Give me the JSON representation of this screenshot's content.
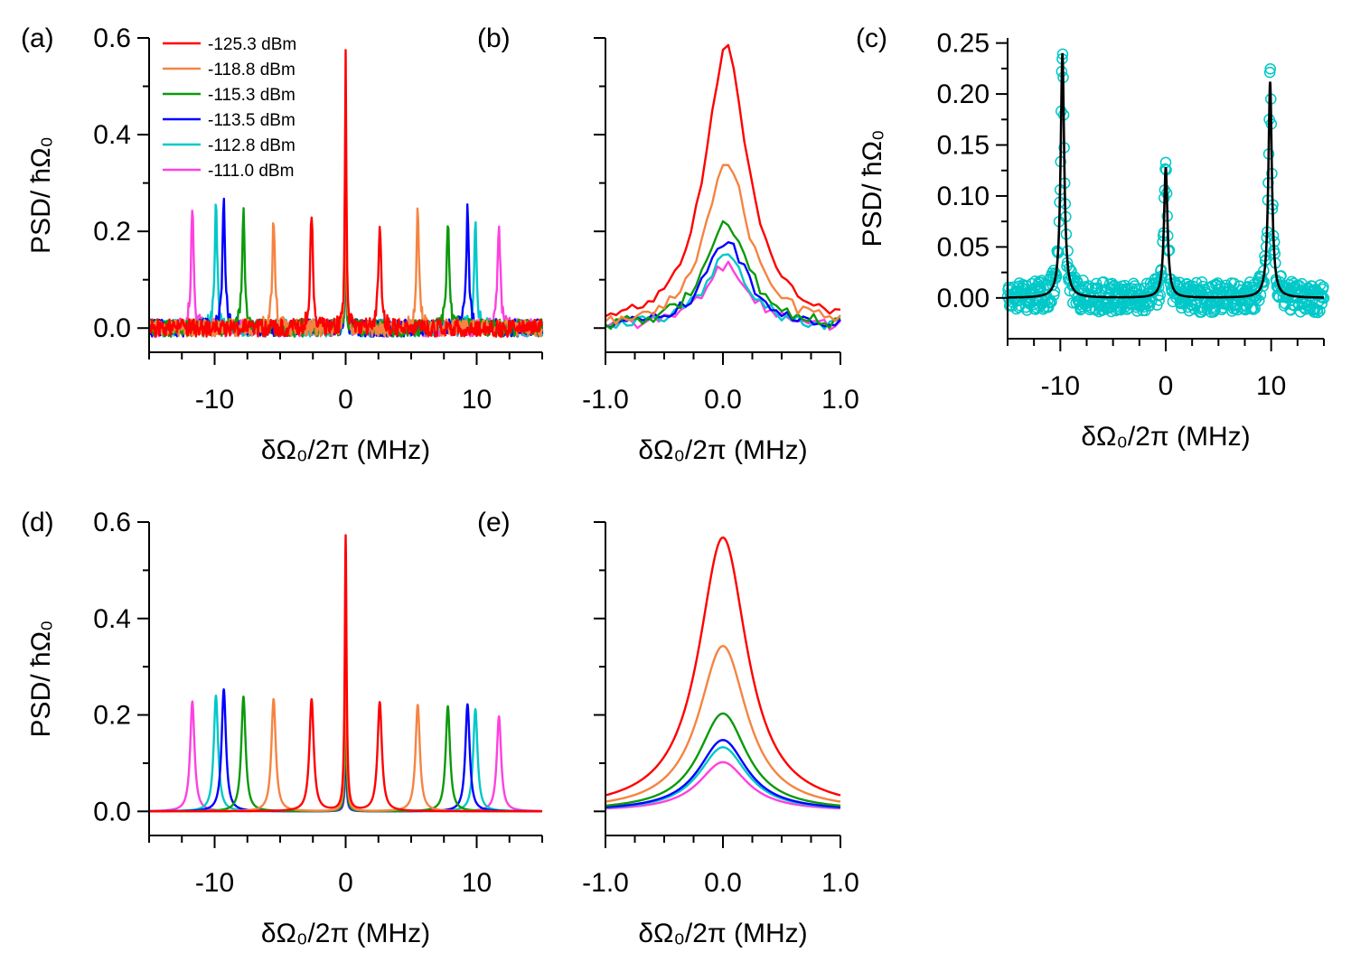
{
  "colors": {
    "red": "#ff0000",
    "orange": "#f58442",
    "green": "#0b9a0b",
    "blue": "#0000ff",
    "cyan": "#00c8c8",
    "magenta": "#ff40e0",
    "black": "#000000"
  },
  "legend": [
    {
      "label": "-125.3 dBm",
      "color": "red"
    },
    {
      "label": "-118.8 dBm",
      "color": "orange"
    },
    {
      "label": "-115.3 dBm",
      "color": "green"
    },
    {
      "label": "-113.5 dBm",
      "color": "blue"
    },
    {
      "label": "-112.8 dBm",
      "color": "cyan"
    },
    {
      "label": "-111.0 dBm",
      "color": "magenta"
    }
  ],
  "axis_titles": {
    "x": "δΩ₀/2π (MHz)",
    "y": "PSD/ ħΩ₀"
  },
  "chart_data": [
    {
      "id": "a",
      "panel_label": "(a)",
      "type": "line",
      "style": "noisy",
      "xlim": [
        -15,
        15
      ],
      "ylim": [
        -0.05,
        0.6
      ],
      "xticks": [
        -10,
        0,
        10
      ],
      "xtick_labels": [
        "-10",
        "0",
        "10"
      ],
      "yticks": [
        0.0,
        0.2,
        0.4,
        0.6
      ],
      "ytick_labels": [
        "0.0",
        "0.2",
        "0.4",
        "0.6"
      ],
      "xlabel": "δΩ₀/2π (MHz)",
      "ylabel": "PSD/ ħΩ₀",
      "noise_amplitude": 0.018,
      "series": [
        {
          "name": "-111.0 dBm",
          "color": "magenta",
          "center_peak": 0.13,
          "sideband_offset": 11.7,
          "sideband_peaks": [
            0.245,
            0.22
          ]
        },
        {
          "name": "-112.8 dBm",
          "color": "cyan",
          "center_peak": 0.14,
          "sideband_offset": 9.9,
          "sideband_peaks": [
            0.25,
            0.22
          ]
        },
        {
          "name": "-113.5 dBm",
          "color": "blue",
          "center_peak": 0.17,
          "sideband_offset": 9.3,
          "sideband_peaks": [
            0.26,
            0.245
          ]
        },
        {
          "name": "-115.3 dBm",
          "color": "green",
          "center_peak": 0.22,
          "sideband_offset": 7.8,
          "sideband_peaks": [
            0.235,
            0.23
          ]
        },
        {
          "name": "-118.8 dBm",
          "color": "orange",
          "center_peak": 0.35,
          "sideband_offset": 5.5,
          "sideband_peaks": [
            0.225,
            0.24
          ]
        },
        {
          "name": "-125.3 dBm",
          "color": "red",
          "center_peak": 0.58,
          "sideband_offset": 2.6,
          "sideband_peaks": [
            0.235,
            0.215
          ]
        }
      ]
    },
    {
      "id": "b",
      "panel_label": "(b)",
      "type": "line",
      "style": "noisy",
      "xlim": [
        -1.0,
        1.0
      ],
      "ylim": [
        -0.05,
        0.6
      ],
      "xticks": [
        -1.0,
        0.0,
        1.0
      ],
      "xtick_labels": [
        "-1.0",
        "0.0",
        "1.0"
      ],
      "yticks": [
        0.0,
        0.2,
        0.4,
        0.6
      ],
      "ytick_labels": [],
      "xlabel": "δΩ₀/2π (MHz)",
      "ylabel": "",
      "noise_amplitude": 0.012,
      "series": [
        {
          "name": "-111.0 dBm",
          "color": "magenta",
          "center_peak": 0.13,
          "center_x": 0.03
        },
        {
          "name": "-112.8 dBm",
          "color": "cyan",
          "center_peak": 0.15,
          "center_x": 0.03
        },
        {
          "name": "-113.5 dBm",
          "color": "blue",
          "center_peak": 0.18,
          "center_x": 0.03
        },
        {
          "name": "-115.3 dBm",
          "color": "green",
          "center_peak": 0.22,
          "center_x": 0.03
        },
        {
          "name": "-118.8 dBm",
          "color": "orange",
          "center_peak": 0.35,
          "center_x": 0.03
        },
        {
          "name": "-125.3 dBm",
          "color": "red",
          "center_peak": 0.58,
          "center_x": 0.03
        }
      ]
    },
    {
      "id": "c",
      "panel_label": "(c)",
      "type": "scatter",
      "style": "scatter-fit",
      "xlim": [
        -15,
        15
      ],
      "ylim": [
        -0.04,
        0.255
      ],
      "xticks": [
        -10,
        0,
        10
      ],
      "xtick_labels": [
        "-10",
        "0",
        "10"
      ],
      "yticks": [
        0.0,
        0.05,
        0.1,
        0.15,
        0.2,
        0.25
      ],
      "ytick_labels": [
        "0.00",
        "0.05",
        "0.10",
        "0.15",
        "0.20",
        "0.25"
      ],
      "xlabel": "δΩ₀/2π (MHz)",
      "ylabel": "PSD/ ħΩ₀",
      "noise_amplitude": 0.015,
      "scatter_color": "cyan",
      "fit_color": "black",
      "peaks": [
        {
          "x": -9.8,
          "height": 0.24
        },
        {
          "x": 0.0,
          "height": 0.128
        },
        {
          "x": 9.9,
          "height": 0.212
        }
      ]
    },
    {
      "id": "d",
      "panel_label": "(d)",
      "type": "line",
      "style": "smooth",
      "xlim": [
        -15,
        15
      ],
      "ylim": [
        -0.05,
        0.6
      ],
      "xticks": [
        -10,
        0,
        10
      ],
      "xtick_labels": [
        "-10",
        "0",
        "10"
      ],
      "yticks": [
        0.0,
        0.2,
        0.4,
        0.6
      ],
      "ytick_labels": [
        "0.0",
        "0.2",
        "0.4",
        "0.6"
      ],
      "xlabel": "δΩ₀/2π (MHz)",
      "ylabel": "PSD/ ħΩ₀",
      "series": [
        {
          "name": "-111.0 dBm",
          "color": "magenta",
          "center_peak": 0.1,
          "sideband_offset": 11.7,
          "sideband_peaks": [
            0.228,
            0.197
          ]
        },
        {
          "name": "-112.8 dBm",
          "color": "cyan",
          "center_peak": 0.13,
          "sideband_offset": 9.9,
          "sideband_peaks": [
            0.24,
            0.212
          ]
        },
        {
          "name": "-113.5 dBm",
          "color": "blue",
          "center_peak": 0.15,
          "sideband_offset": 9.3,
          "sideband_peaks": [
            0.253,
            0.222
          ]
        },
        {
          "name": "-115.3 dBm",
          "color": "green",
          "center_peak": 0.205,
          "sideband_offset": 7.8,
          "sideband_peaks": [
            0.238,
            0.218
          ]
        },
        {
          "name": "-118.8 dBm",
          "color": "orange",
          "center_peak": 0.345,
          "sideband_offset": 5.5,
          "sideband_peaks": [
            0.233,
            0.221
          ]
        },
        {
          "name": "-125.3 dBm",
          "color": "red",
          "center_peak": 0.57,
          "sideband_offset": 2.6,
          "sideband_peaks": [
            0.232,
            0.226
          ]
        }
      ]
    },
    {
      "id": "e",
      "panel_label": "(e)",
      "type": "line",
      "style": "smooth",
      "xlim": [
        -1.0,
        1.0
      ],
      "ylim": [
        -0.05,
        0.6
      ],
      "xticks": [
        -1.0,
        0.0,
        1.0
      ],
      "xtick_labels": [
        "-1.0",
        "0.0",
        "1.0"
      ],
      "yticks": [
        0.0,
        0.2,
        0.4,
        0.6
      ],
      "ytick_labels": [],
      "xlabel": "δΩ₀/2π (MHz)",
      "ylabel": "",
      "series": [
        {
          "name": "-111.0 dBm",
          "color": "magenta",
          "center_peak": 0.102,
          "center_x": 0.0
        },
        {
          "name": "-112.8 dBm",
          "color": "cyan",
          "center_peak": 0.133,
          "center_x": 0.0
        },
        {
          "name": "-113.5 dBm",
          "color": "blue",
          "center_peak": 0.148,
          "center_x": 0.0
        },
        {
          "name": "-115.3 dBm",
          "color": "green",
          "center_peak": 0.203,
          "center_x": 0.0
        },
        {
          "name": "-118.8 dBm",
          "color": "orange",
          "center_peak": 0.343,
          "center_x": 0.0
        },
        {
          "name": "-125.3 dBm",
          "color": "red",
          "center_peak": 0.568,
          "center_x": 0.0
        }
      ]
    }
  ]
}
